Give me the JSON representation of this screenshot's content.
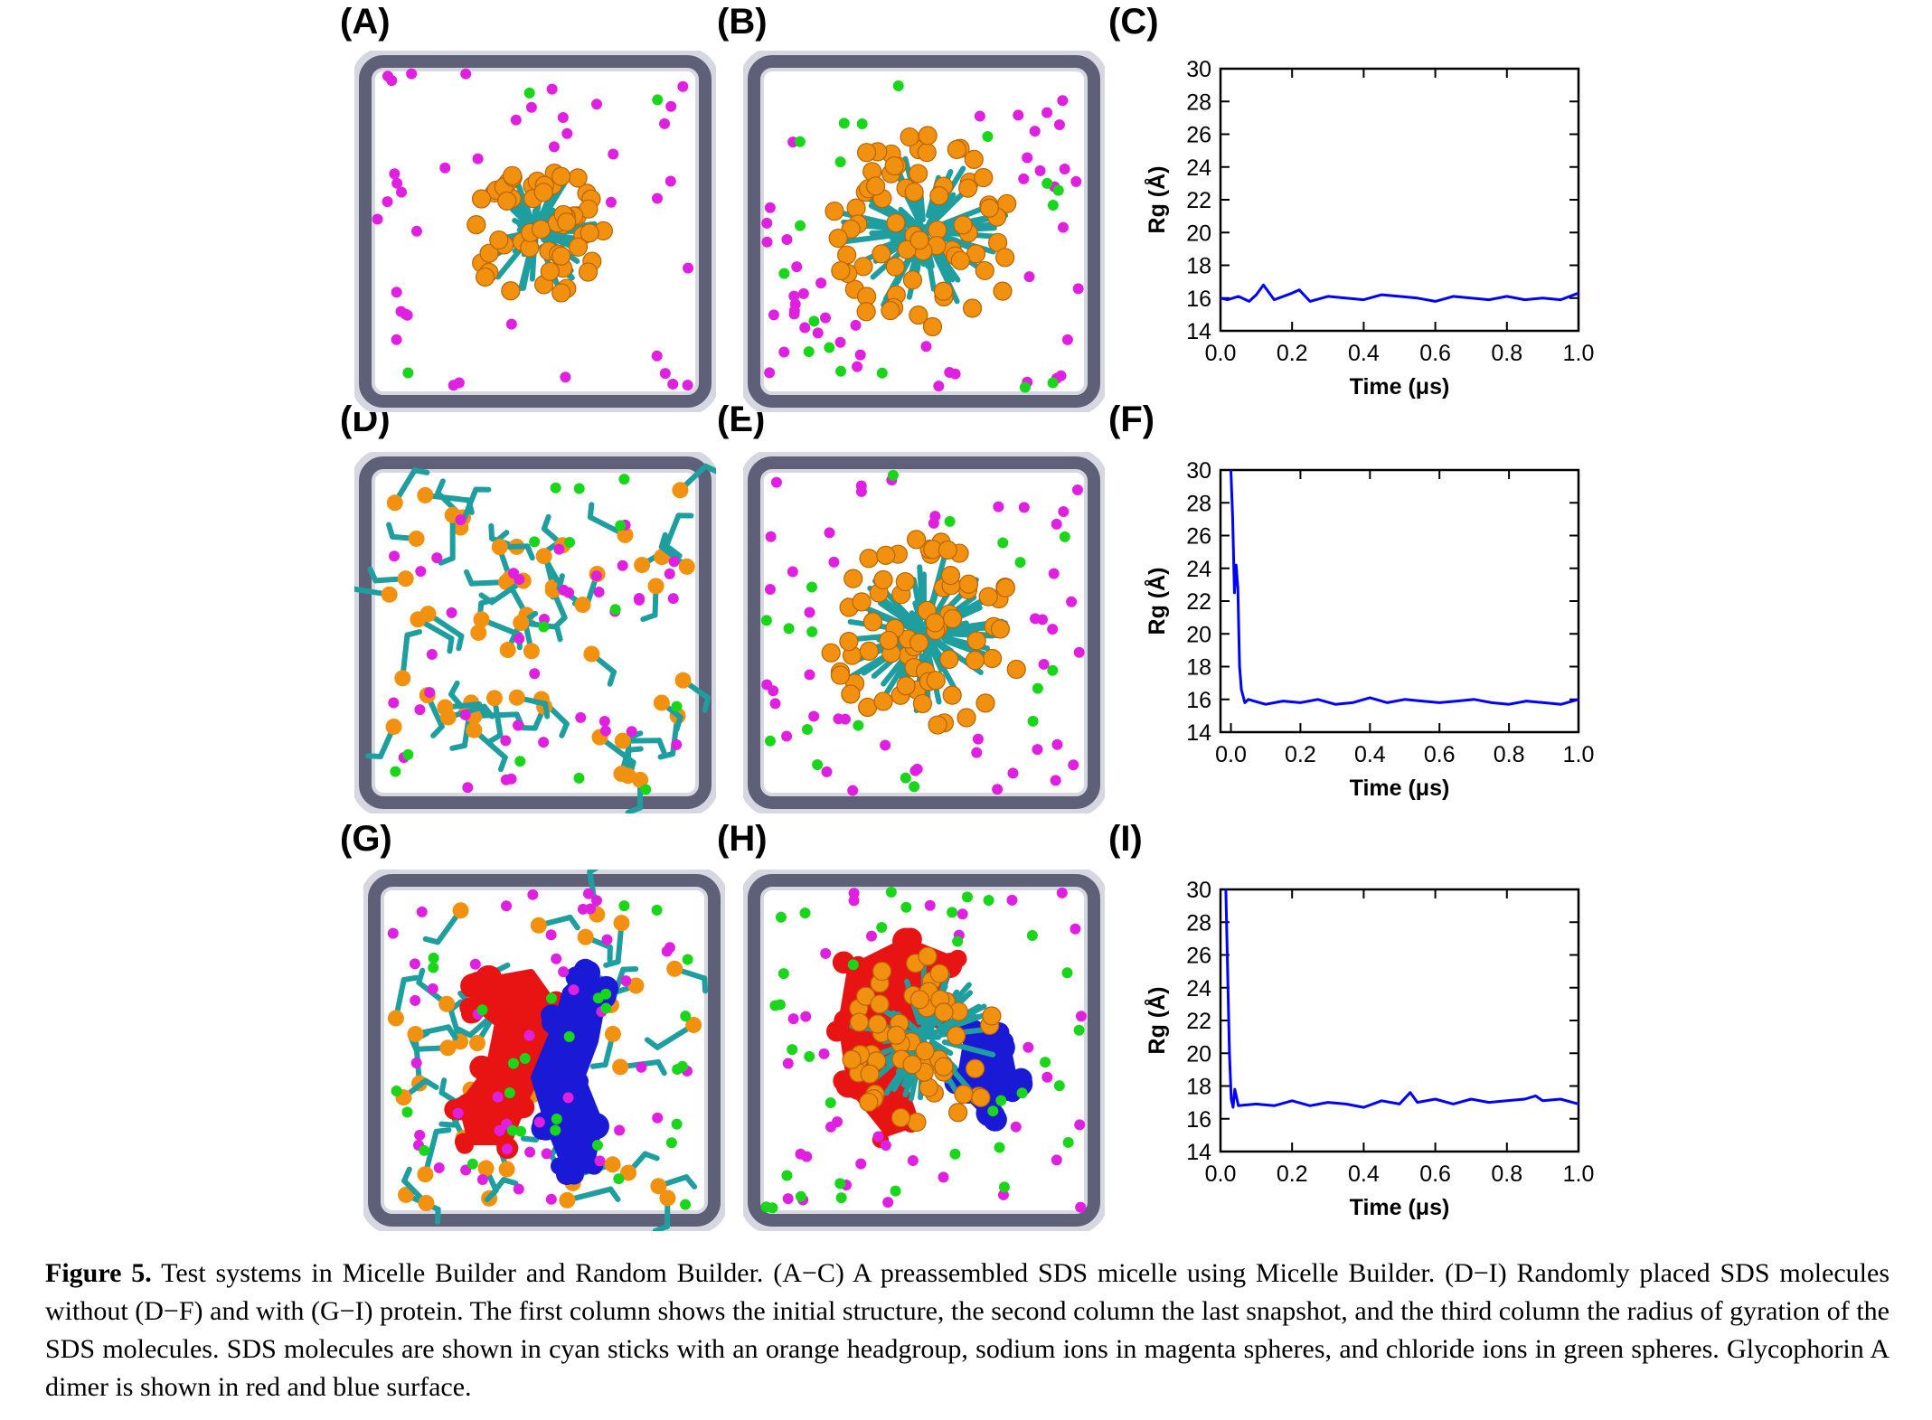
{
  "figure": {
    "panel_labels": [
      "(A)",
      "(B)",
      "(C)",
      "(D)",
      "(E)",
      "(F)",
      "(G)",
      "(H)",
      "(I)"
    ]
  },
  "colors": {
    "box_frame": "#5e6078",
    "sds_tail": "#1f9ea0",
    "sds_headgroup": "#f2900f",
    "sodium": "#e020e0",
    "chloride": "#1ad61a",
    "protein_a": "#e81414",
    "protein_b": "#1a1ad6",
    "rg_line": "#0000ff"
  },
  "snapshots": [
    {
      "panel": "A",
      "kind": "micelle",
      "description_key": "preassembled-initial"
    },
    {
      "panel": "B",
      "kind": "micelle",
      "description_key": "preassembled-final"
    },
    {
      "panel": "D",
      "kind": "random",
      "description_key": "random-initial"
    },
    {
      "panel": "E",
      "kind": "micelle",
      "description_key": "random-final"
    },
    {
      "panel": "G",
      "kind": "random-protein",
      "description_key": "protein-initial"
    },
    {
      "panel": "H",
      "kind": "micelle-protein",
      "description_key": "protein-final"
    }
  ],
  "chart_data": [
    {
      "panel": "C",
      "type": "line",
      "xlabel": "Time (μs)",
      "ylabel": "Rg (Å)",
      "xlim": [
        0.0,
        1.0
      ],
      "ylim": [
        14,
        30
      ],
      "xticks": [
        "0.0",
        "0.2",
        "0.4",
        "0.6",
        "0.8",
        "1.0"
      ],
      "yticks": [
        "14",
        "16",
        "18",
        "20",
        "22",
        "24",
        "26",
        "28",
        "30"
      ],
      "series": [
        {
          "x": [
            0.0,
            0.02,
            0.05,
            0.08,
            0.1,
            0.12,
            0.15,
            0.2,
            0.22,
            0.25,
            0.3,
            0.35,
            0.4,
            0.45,
            0.5,
            0.55,
            0.6,
            0.65,
            0.7,
            0.75,
            0.8,
            0.85,
            0.9,
            0.95,
            1.0
          ],
          "y": [
            16.0,
            15.9,
            16.1,
            15.8,
            16.2,
            16.8,
            15.9,
            16.3,
            16.5,
            15.8,
            16.1,
            16.0,
            15.9,
            16.2,
            16.1,
            16.0,
            15.8,
            16.1,
            16.0,
            15.9,
            16.1,
            15.9,
            16.0,
            15.9,
            16.3
          ]
        }
      ]
    },
    {
      "panel": "F",
      "type": "line",
      "xlabel": "Time (μs)",
      "ylabel": "Rg (Å)",
      "xlim": [
        -0.03,
        1.0
      ],
      "ylim": [
        14,
        30
      ],
      "xticks": [
        "0.0",
        "0.2",
        "0.4",
        "0.6",
        "0.8",
        "1.0"
      ],
      "yticks": [
        "14",
        "16",
        "18",
        "20",
        "22",
        "24",
        "26",
        "28",
        "30"
      ],
      "series": [
        {
          "x": [
            0.0,
            0.005,
            0.01,
            0.015,
            0.02,
            0.025,
            0.03,
            0.04,
            0.05,
            0.1,
            0.15,
            0.2,
            0.25,
            0.3,
            0.35,
            0.4,
            0.45,
            0.5,
            0.55,
            0.6,
            0.65,
            0.7,
            0.75,
            0.8,
            0.85,
            0.9,
            0.95,
            1.0
          ],
          "y": [
            30.0,
            27.0,
            22.5,
            24.2,
            22.8,
            18.0,
            16.6,
            15.8,
            16.0,
            15.7,
            15.9,
            15.8,
            16.0,
            15.7,
            15.8,
            16.1,
            15.8,
            16.0,
            15.9,
            15.8,
            15.9,
            16.0,
            15.8,
            15.7,
            15.9,
            15.8,
            15.7,
            16.0
          ]
        }
      ]
    },
    {
      "panel": "I",
      "type": "line",
      "xlabel": "Time (μs)",
      "ylabel": "Rg (Å)",
      "xlim": [
        0.0,
        1.0
      ],
      "ylim": [
        14,
        30
      ],
      "xticks": [
        "0.0",
        "0.2",
        "0.4",
        "0.6",
        "0.8",
        "1.0"
      ],
      "yticks": [
        "14",
        "16",
        "18",
        "20",
        "22",
        "24",
        "26",
        "28",
        "30"
      ],
      "series": [
        {
          "x": [
            0.015,
            0.02,
            0.025,
            0.03,
            0.035,
            0.04,
            0.05,
            0.1,
            0.15,
            0.2,
            0.25,
            0.3,
            0.35,
            0.4,
            0.45,
            0.5,
            0.53,
            0.55,
            0.6,
            0.65,
            0.7,
            0.75,
            0.8,
            0.85,
            0.88,
            0.9,
            0.95,
            1.0
          ],
          "y": [
            30.0,
            25.0,
            20.0,
            17.2,
            16.7,
            17.8,
            16.8,
            16.9,
            16.8,
            17.1,
            16.8,
            17.0,
            16.9,
            16.7,
            17.1,
            16.9,
            17.6,
            17.0,
            17.2,
            16.9,
            17.2,
            17.0,
            17.1,
            17.2,
            17.4,
            17.1,
            17.2,
            16.9
          ]
        }
      ]
    }
  ],
  "caption": {
    "lead": "Figure 5.",
    "text": " Test systems in Micelle Builder and Random Builder. (A−C) A preassembled SDS micelle using Micelle Builder. (D−I) Randomly placed SDS molecules without (D−F) and with (G−I) protein. The first column shows the initial structure, the second column the last snapshot, and the third column the radius of gyration of the SDS molecules. SDS molecules are shown in cyan sticks with an orange headgroup, sodium ions in magenta spheres, and chloride ions in green spheres. Glycophorin A dimer is shown in red and blue surface."
  }
}
